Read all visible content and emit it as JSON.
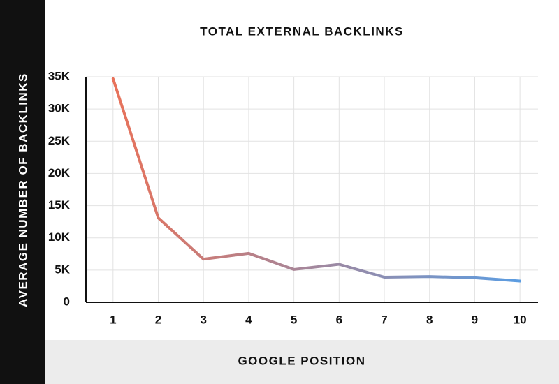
{
  "chart_data": {
    "type": "line",
    "title": "TOTAL EXTERNAL BACKLINKS",
    "xlabel": "GOOGLE POSITION",
    "ylabel": "AVERAGE NUMBER OF BACKLINKS",
    "x": [
      1,
      2,
      3,
      4,
      5,
      6,
      7,
      8,
      9,
      10
    ],
    "values": [
      34700,
      13100,
      6700,
      7600,
      5100,
      5900,
      3900,
      4000,
      3800,
      3300
    ],
    "colors": [
      "#e8725a",
      "#5b9de2"
    ],
    "xlim": [
      0.4,
      10.4
    ],
    "xticks": [
      1,
      2,
      3,
      4,
      5,
      6,
      7,
      8,
      9,
      10
    ],
    "ylim": [
      0,
      35000
    ],
    "yticks": [
      0,
      {
        "value": 5000,
        "label": "5K"
      },
      {
        "value": 10000,
        "label": "10K"
      },
      {
        "value": 15000,
        "label": "15K"
      },
      {
        "value": 20000,
        "label": "20K"
      },
      {
        "value": 25000,
        "label": "25K"
      },
      {
        "value": 30000,
        "label": "30K"
      },
      {
        "value": 35000,
        "label": "35K"
      }
    ],
    "grid": true
  }
}
